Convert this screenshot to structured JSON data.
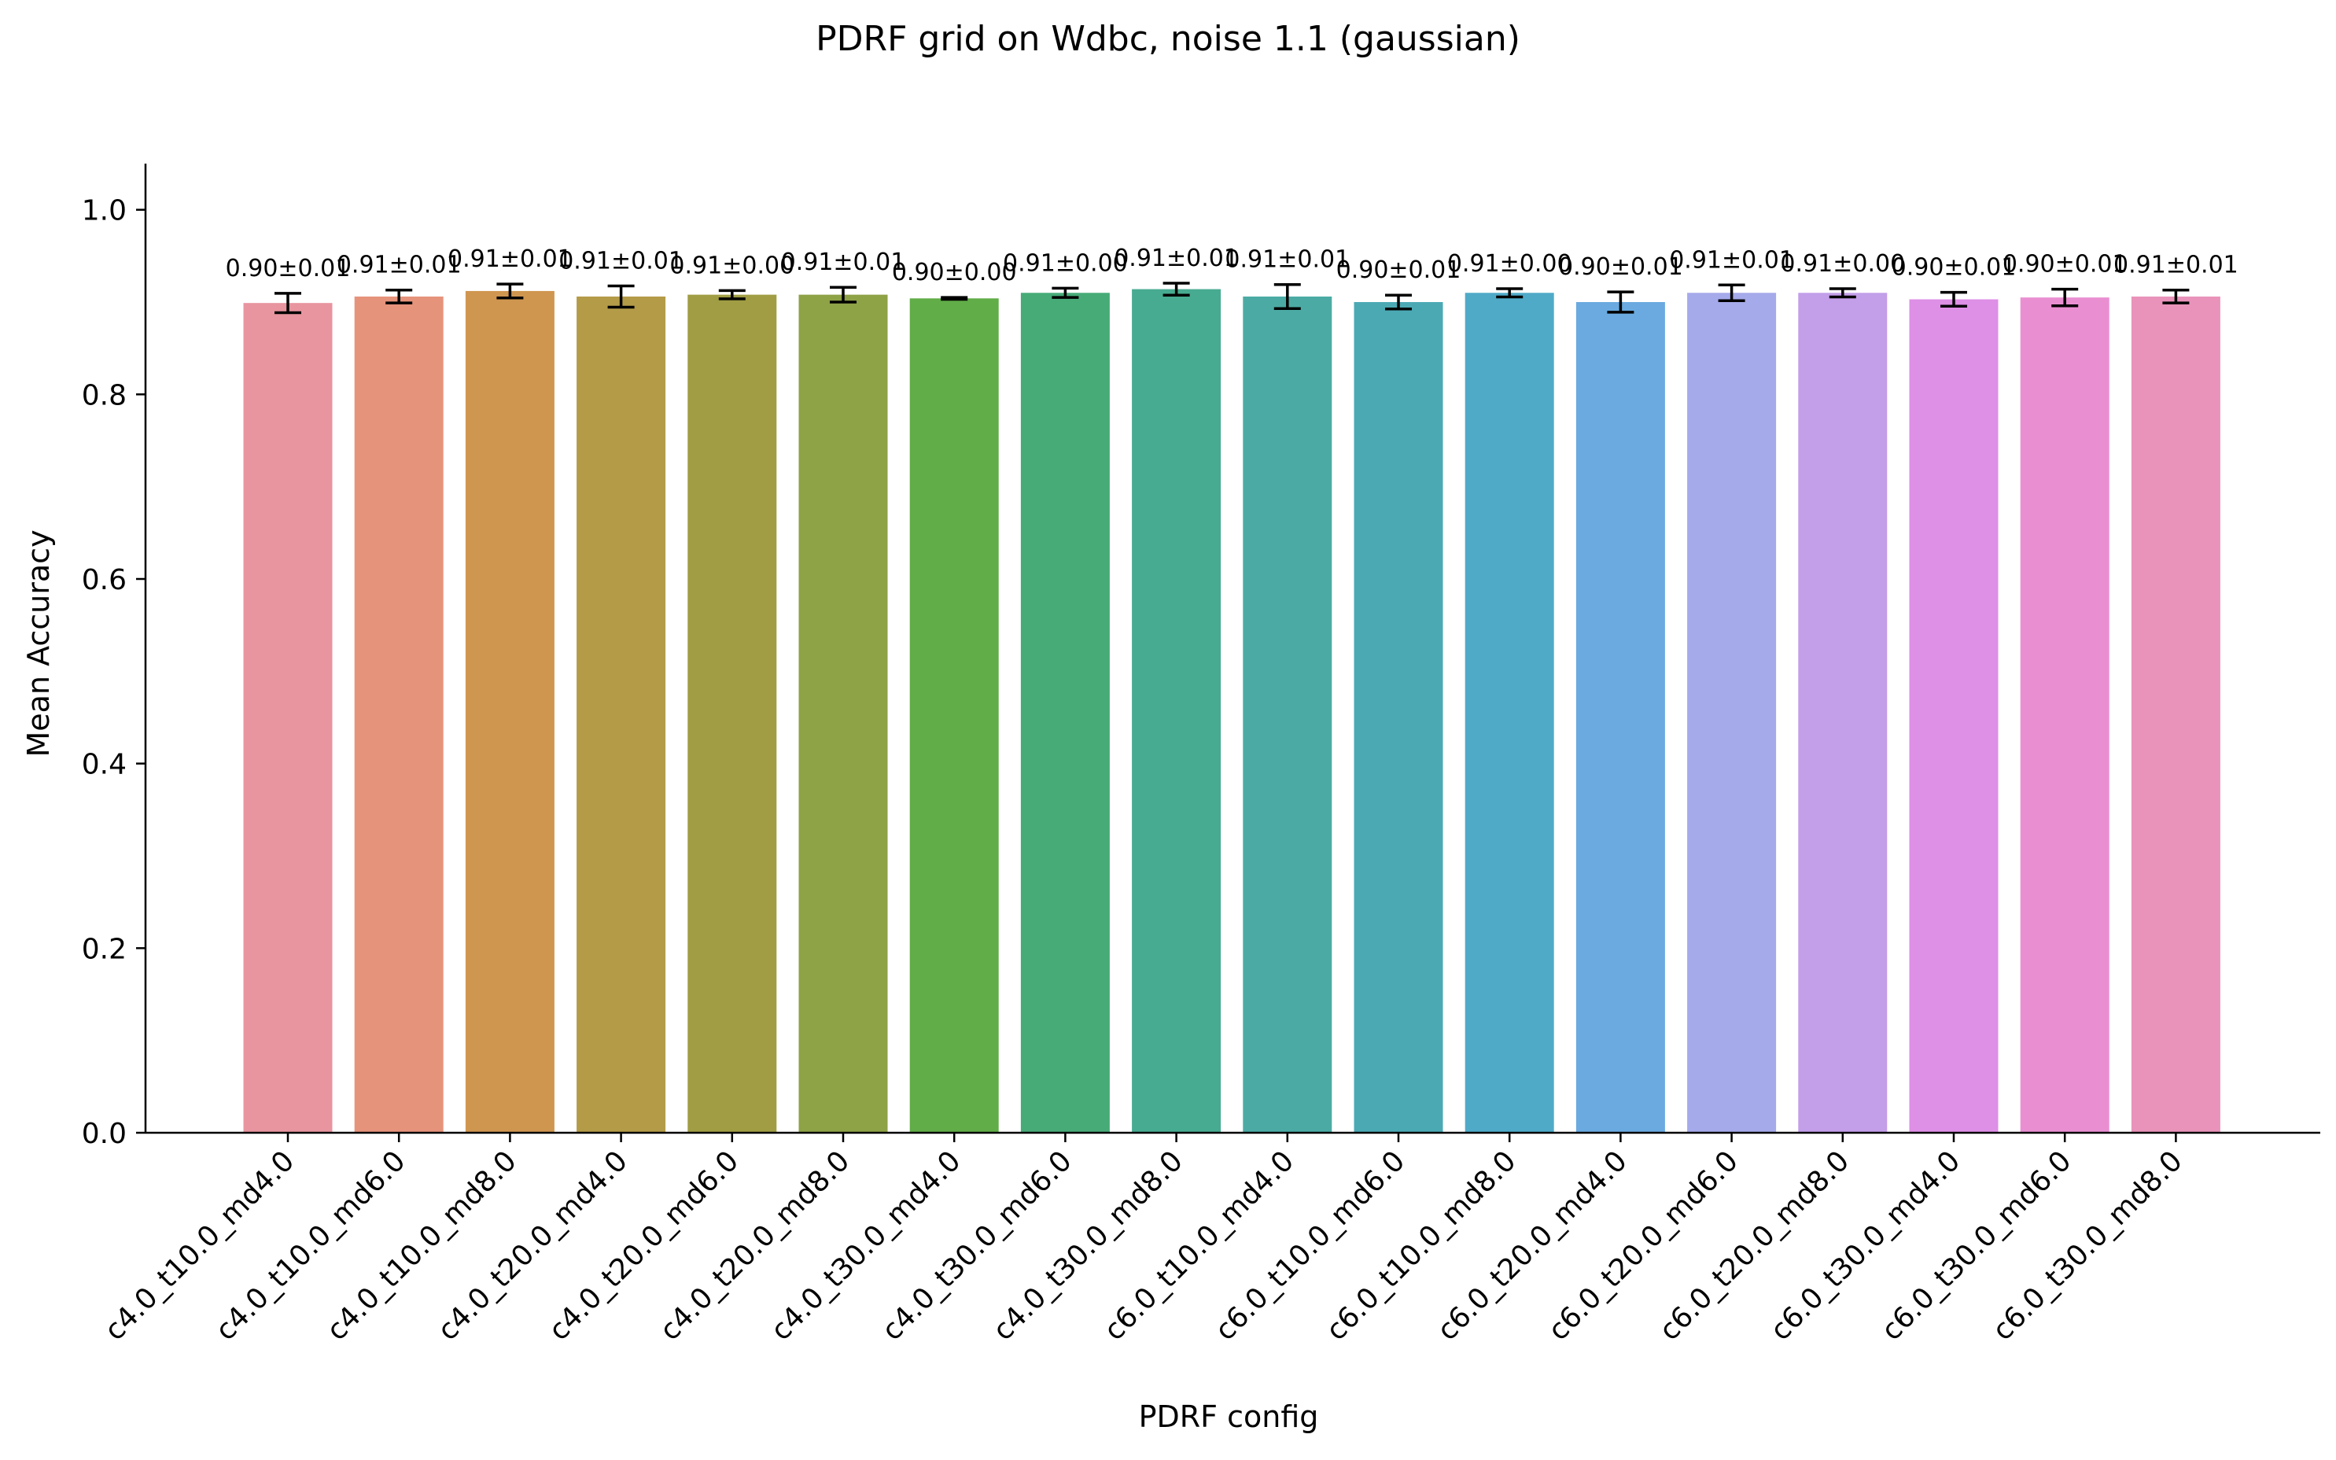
{
  "chart_data": {
    "type": "bar",
    "title": "PDRF grid on Wdbc, noise 1.1 (gaussian)",
    "xlabel": "PDRF config",
    "ylabel": "Mean Accuracy",
    "ylim": [
      0,
      1.05
    ],
    "yticks": [
      "0.0",
      "0.2",
      "0.4",
      "0.6",
      "0.8",
      "1.0"
    ],
    "grid": false,
    "categories": [
      "c4.0_t10.0_md4.0",
      "c4.0_t10.0_md6.0",
      "c4.0_t10.0_md8.0",
      "c4.0_t20.0_md4.0",
      "c4.0_t20.0_md6.0",
      "c4.0_t20.0_md8.0",
      "c4.0_t30.0_md4.0",
      "c4.0_t30.0_md6.0",
      "c4.0_t30.0_md8.0",
      "c6.0_t10.0_md4.0",
      "c6.0_t10.0_md6.0",
      "c6.0_t10.0_md8.0",
      "c6.0_t20.0_md4.0",
      "c6.0_t20.0_md6.0",
      "c6.0_t20.0_md8.0",
      "c6.0_t30.0_md4.0",
      "c6.0_t30.0_md6.0",
      "c6.0_t30.0_md8.0"
    ],
    "values": [
      0.899,
      0.906,
      0.912,
      0.906,
      0.908,
      0.908,
      0.904,
      0.91,
      0.914,
      0.906,
      0.9,
      0.91,
      0.9,
      0.91,
      0.91,
      0.903,
      0.905,
      0.906
    ],
    "errors": [
      0.0105,
      0.007,
      0.0075,
      0.0115,
      0.0045,
      0.008,
      0.001,
      0.005,
      0.0065,
      0.013,
      0.0075,
      0.0045,
      0.011,
      0.0085,
      0.0045,
      0.0075,
      0.009,
      0.007
    ],
    "labels": [
      "0.90±0.01",
      "0.91±0.01",
      "0.91±0.01",
      "0.91±0.01",
      "0.91±0.00",
      "0.91±0.01",
      "0.90±0.00",
      "0.91±0.00",
      "0.91±0.01",
      "0.91±0.01",
      "0.90±0.01",
      "0.91±0.00",
      "0.90±0.01",
      "0.91±0.01",
      "0.91±0.00",
      "0.90±0.01",
      "0.90±0.01",
      "0.91±0.01"
    ],
    "colors": [
      "#e8959f",
      "#e6937b",
      "#cf9650",
      "#b49b48",
      "#a09d44",
      "#8ea246",
      "#61ad48",
      "#47ab78",
      "#47ab91",
      "#4baba4",
      "#4ba9b4",
      "#4faac8",
      "#6aaae0",
      "#a4aaea",
      "#c39ee9",
      "#de8fe6",
      "#e98fd1",
      "#e993ba"
    ]
  }
}
